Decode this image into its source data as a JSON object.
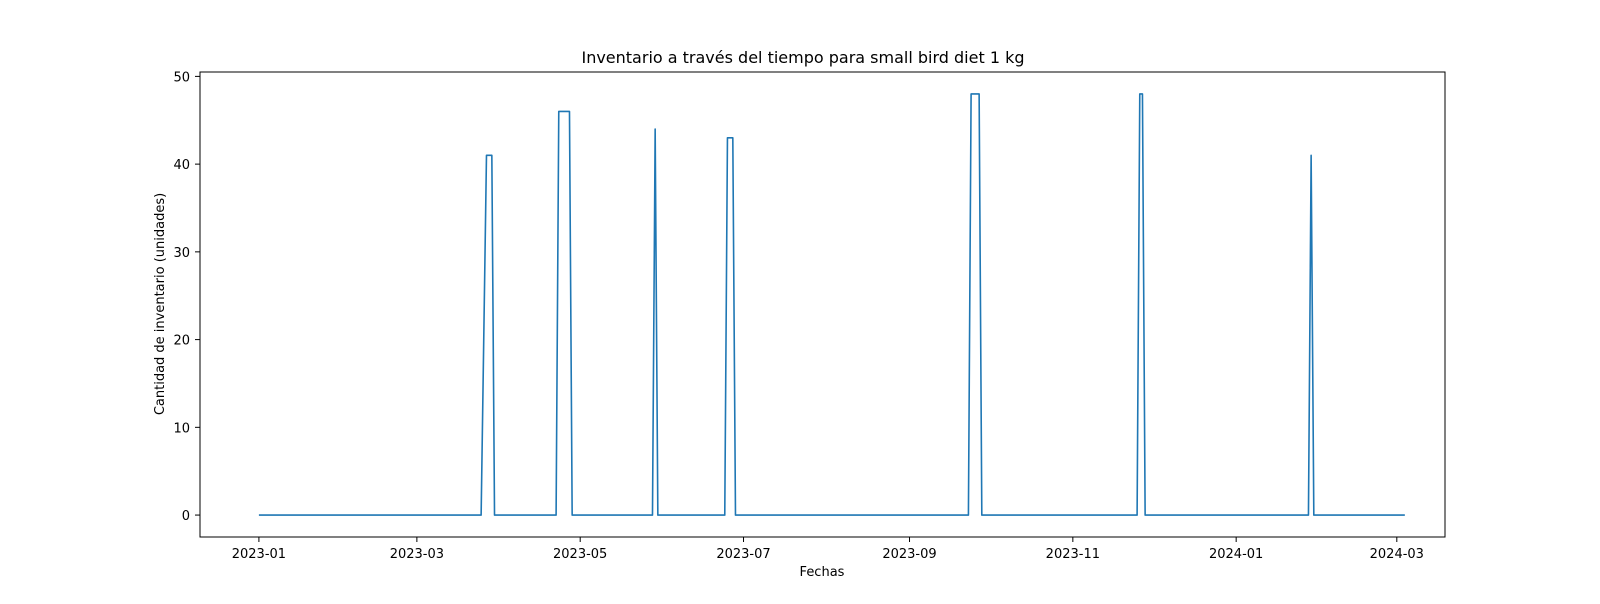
{
  "chart_data": {
    "type": "line",
    "title": "Inventario a través del tiempo para small bird diet 1 kg",
    "xlabel": "Fechas",
    "ylabel": "Cantidad de inventario (unidades)",
    "grid": false,
    "legend": "none",
    "xlim": [
      "2022-12-10",
      "2024-03-19"
    ],
    "ylim": [
      -2.5,
      50.5
    ],
    "x_ticks": [
      "2023-01",
      "2023-03",
      "2023-05",
      "2023-07",
      "2023-09",
      "2023-11",
      "2024-01",
      "2024-03"
    ],
    "y_ticks": [
      0,
      10,
      20,
      30,
      40,
      50
    ],
    "series": [
      {
        "color": "#1f77b4",
        "points": [
          [
            "2023-01-01",
            0
          ],
          [
            "2023-03-25",
            0
          ],
          [
            "2023-03-27",
            41
          ],
          [
            "2023-03-29",
            41
          ],
          [
            "2023-03-30",
            0
          ],
          [
            "2023-04-22",
            0
          ],
          [
            "2023-04-23",
            46
          ],
          [
            "2023-04-27",
            46
          ],
          [
            "2023-04-28",
            0
          ],
          [
            "2023-05-28",
            0
          ],
          [
            "2023-05-29",
            44
          ],
          [
            "2023-05-30",
            0
          ],
          [
            "2023-06-24",
            0
          ],
          [
            "2023-06-25",
            43
          ],
          [
            "2023-06-27",
            43
          ],
          [
            "2023-06-28",
            0
          ],
          [
            "2023-09-23",
            0
          ],
          [
            "2023-09-24",
            48
          ],
          [
            "2023-09-27",
            48
          ],
          [
            "2023-09-28",
            0
          ],
          [
            "2023-11-25",
            0
          ],
          [
            "2023-11-26",
            48
          ],
          [
            "2023-11-27",
            48
          ],
          [
            "2023-11-28",
            0
          ],
          [
            "2024-01-28",
            0
          ],
          [
            "2024-01-29",
            41
          ],
          [
            "2024-01-30",
            0
          ],
          [
            "2024-03-04",
            0
          ]
        ]
      }
    ]
  }
}
